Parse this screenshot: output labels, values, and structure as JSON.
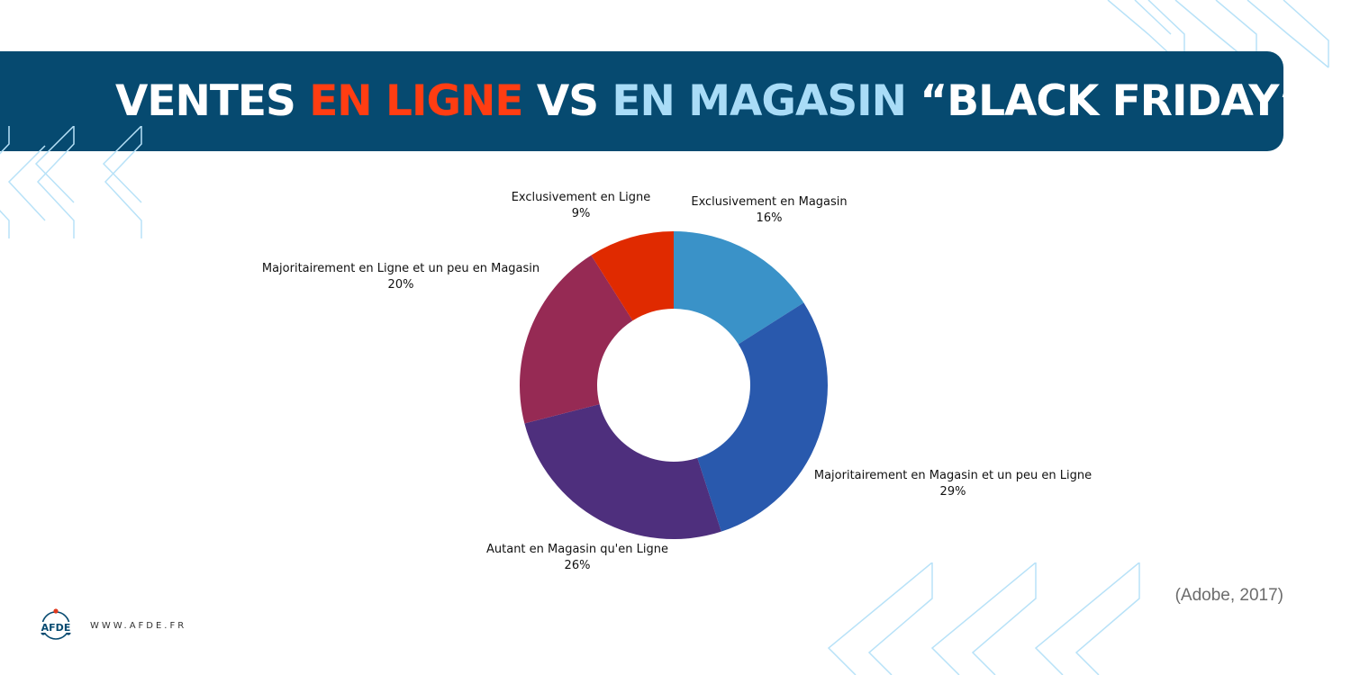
{
  "title": {
    "part1": "VENTES ",
    "part2": "EN LIGNE",
    "part3": " VS ",
    "part4": "EN MAGASIN",
    "part5": " “BLACK FRIDAY”"
  },
  "colors": {
    "banner": "#064a70",
    "accent_online": "#ff3d12",
    "accent_store": "#a9dcf7"
  },
  "chart_data": {
    "type": "pie",
    "donut": true,
    "unit": "%",
    "slices": [
      {
        "label": "Exclusivement en Magasin",
        "value": 16,
        "display": "16%",
        "color": "#3a92c8"
      },
      {
        "label": "Majoritairement en Magasin et un peu en Ligne",
        "value": 29,
        "display": "29%",
        "color": "#2959ad"
      },
      {
        "label": "Autant en Magasin qu'en Ligne",
        "value": 26,
        "display": "26%",
        "color": "#4e2f7d"
      },
      {
        "label": "Majoritairement en Ligne et un peu en Magasin",
        "value": 20,
        "display": "20%",
        "color": "#962a54"
      },
      {
        "label": "Exclusivement en Ligne",
        "value": 9,
        "display": "9%",
        "color": "#e02a00"
      }
    ]
  },
  "source": "(Adobe, 2017)",
  "brand": {
    "logo_text": "AFDE",
    "website": "WWW.AFDE.FR"
  }
}
